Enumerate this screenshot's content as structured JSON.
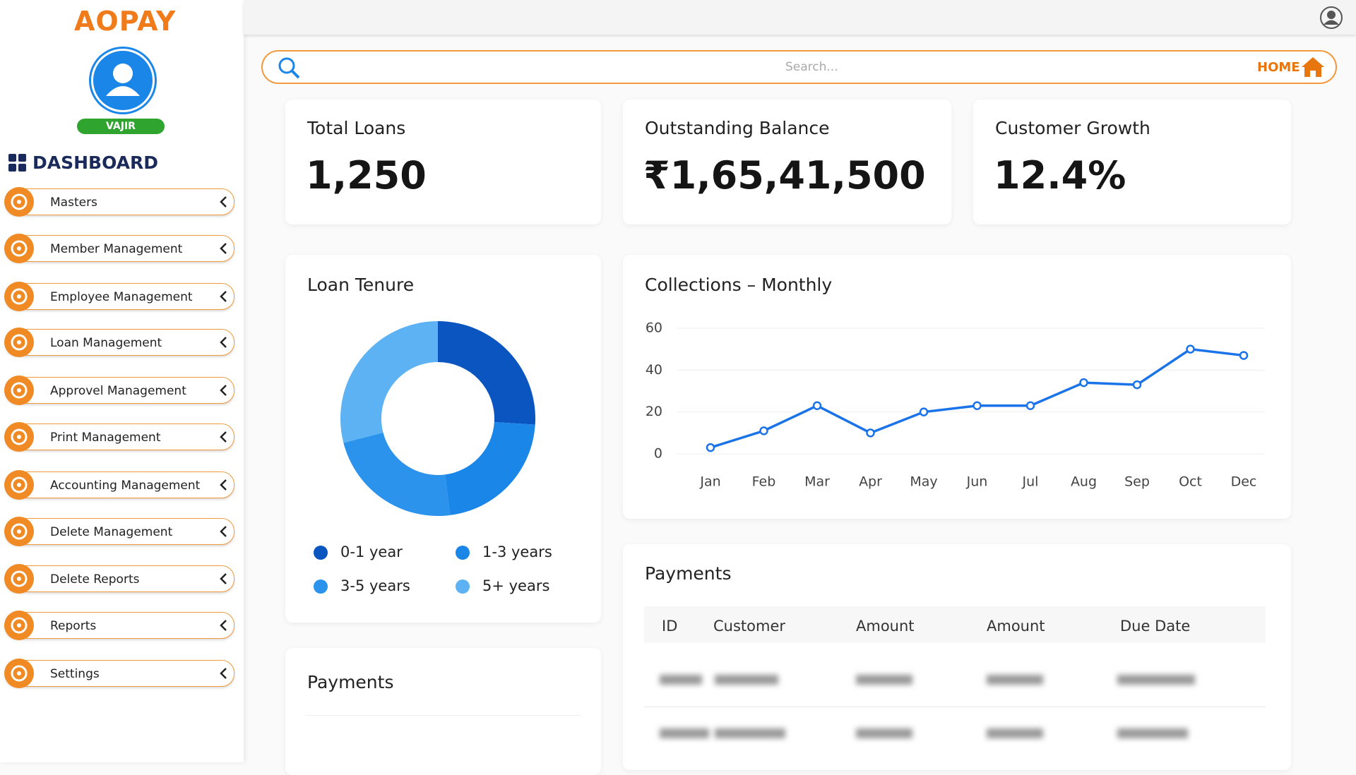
{
  "brand": "AOPAY",
  "user": {
    "name": "VAJIR"
  },
  "sidebar": {
    "title": "DASHBOARD",
    "items": [
      "Masters",
      "Member Management",
      "Employee Management",
      "Loan Management",
      "Approvel Management",
      "Print Management",
      "Accounting Management",
      "Delete Management",
      "Delete Reports",
      "Reports",
      "Settings"
    ]
  },
  "search": {
    "placeholder": "Search...",
    "home": "HOME"
  },
  "stats": [
    {
      "label": "Total Loans",
      "value": "1,250"
    },
    {
      "label": "Outstanding Balance",
      "value": "₹1,65,41,500"
    },
    {
      "label": "Customer Growth",
      "value": "12.4%"
    }
  ],
  "chart_data": [
    {
      "type": "donut",
      "title": "Loan Tenure",
      "categories": [
        "0-1 year",
        "1-3 years",
        "3-5 years",
        "5+ years"
      ],
      "values": [
        26,
        22,
        23,
        29
      ],
      "colors": [
        "#0a55bf",
        "#1a86e8",
        "#2b93ec",
        "#5cb2f2"
      ]
    },
    {
      "type": "line",
      "title": "Collections – Monthly",
      "categories": [
        "Jan",
        "Feb",
        "Mar",
        "Apr",
        "May",
        "Jun",
        "Jul",
        "Aug",
        "Sep",
        "Oct",
        "Dec"
      ],
      "values": [
        3,
        11,
        23,
        10,
        20,
        23,
        23,
        34,
        33,
        50,
        47
      ],
      "color": "#1a73e8",
      "ylim": [
        0,
        60
      ],
      "yticks": [
        0,
        20,
        40,
        60
      ],
      "grid": true
    }
  ],
  "payments": {
    "title": "Payments",
    "columns": [
      "ID",
      "Customer",
      "Amount",
      "Amount",
      "Due Date"
    ]
  },
  "payments_left": {
    "title": "Payments"
  }
}
